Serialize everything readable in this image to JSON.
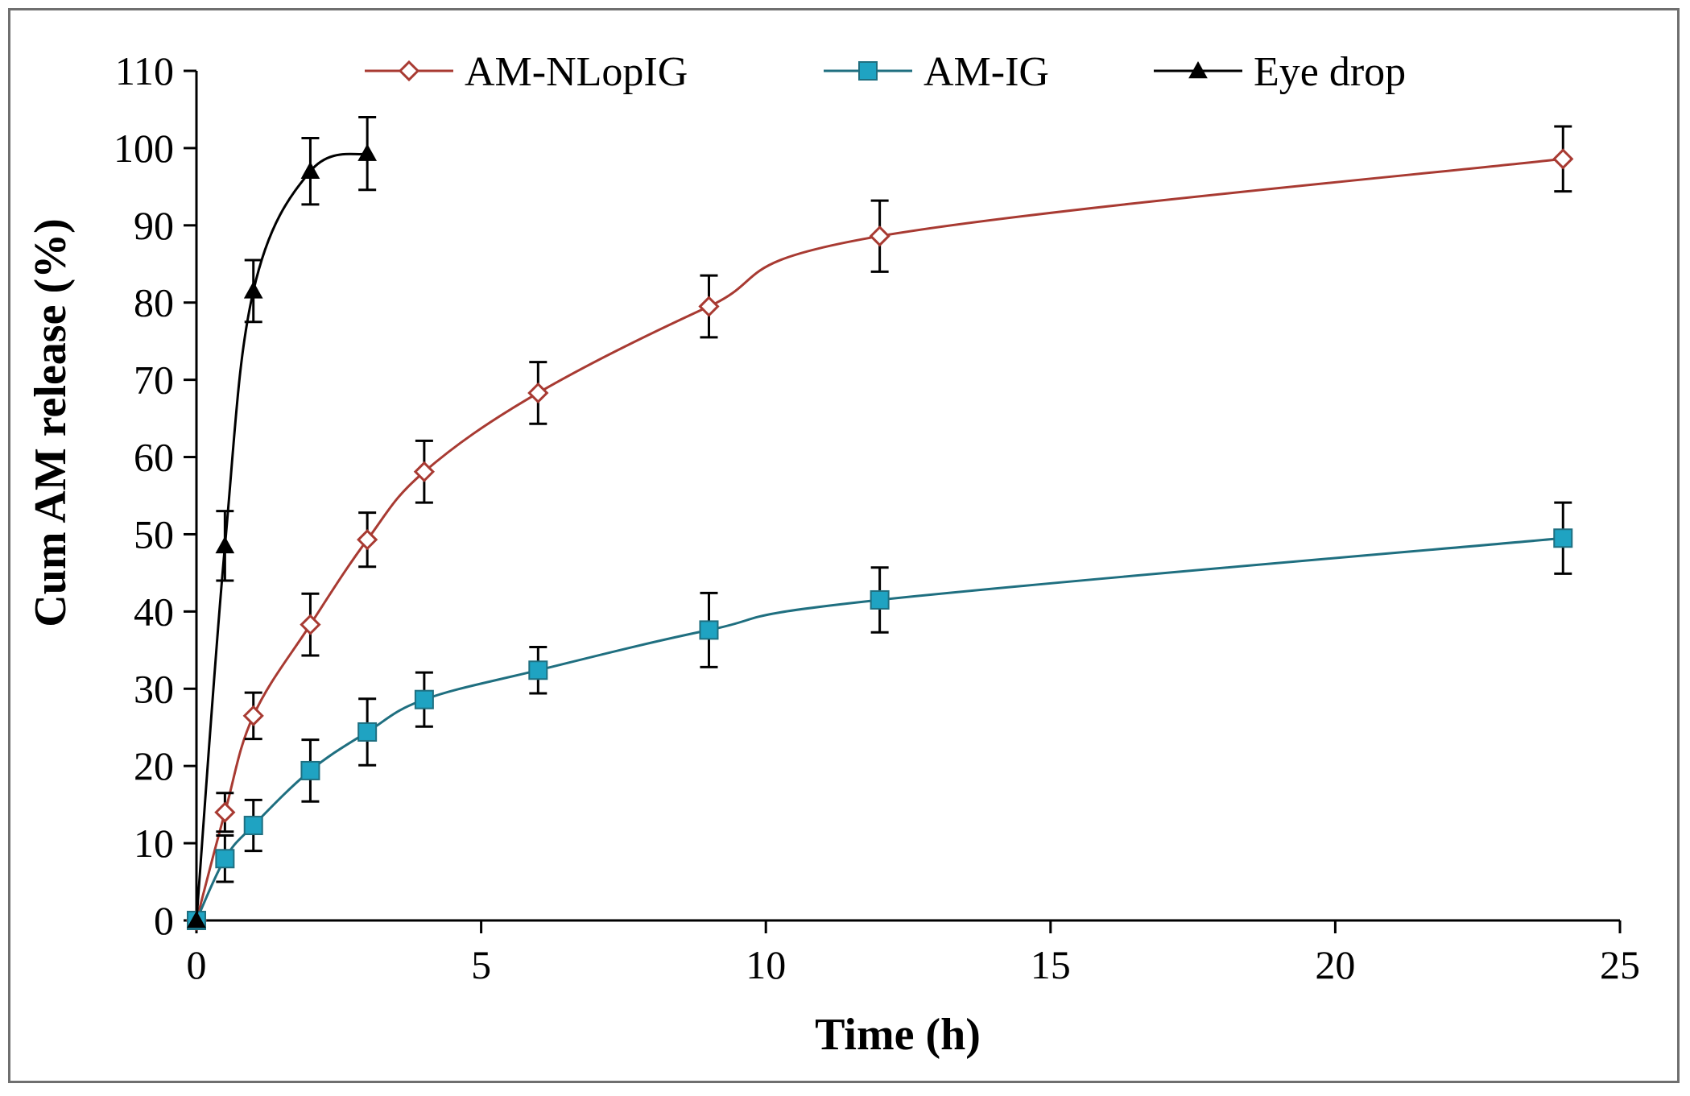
{
  "chart_data": {
    "type": "line",
    "title": "",
    "xlabel": "Time (h)",
    "ylabel": "Cum AM release (%)",
    "xlim": [
      0,
      25
    ],
    "ylim": [
      0,
      110
    ],
    "xticks": [
      0,
      5,
      10,
      15,
      20,
      25
    ],
    "yticks": [
      0,
      10,
      20,
      30,
      40,
      50,
      60,
      70,
      80,
      90,
      100,
      110
    ],
    "grid": false,
    "legend_position": "top",
    "series": [
      {
        "name": "AM-NLopIG",
        "color": "#a83a32",
        "marker": "diamond-open",
        "x": [
          0,
          0.5,
          1,
          2,
          3,
          4,
          6,
          9,
          12,
          24
        ],
        "y": [
          0,
          14,
          26.5,
          38.3,
          49.3,
          58.1,
          68.3,
          79.5,
          88.6,
          98.6
        ],
        "err": [
          0,
          2.5,
          3,
          4,
          3.5,
          4,
          4,
          4,
          4.6,
          4.2
        ]
      },
      {
        "name": "AM-IG",
        "color": "#1f6f80",
        "marker": "square",
        "markerColor": "#1fa3c2",
        "x": [
          0,
          0.5,
          1,
          2,
          3,
          4,
          6,
          9,
          12,
          24
        ],
        "y": [
          0,
          8,
          12.3,
          19.4,
          24.4,
          28.6,
          32.4,
          37.6,
          41.5,
          49.5
        ],
        "err": [
          0,
          3,
          3.3,
          4,
          4.3,
          3.5,
          3,
          4.8,
          4.2,
          4.6
        ]
      },
      {
        "name": "Eye drop",
        "color": "#000000",
        "marker": "triangle",
        "x": [
          0,
          0.5,
          1,
          2,
          3
        ],
        "y": [
          0,
          48.5,
          81.5,
          97,
          99.3
        ],
        "err": [
          0,
          4.5,
          4,
          4.3,
          4.7
        ]
      }
    ]
  }
}
